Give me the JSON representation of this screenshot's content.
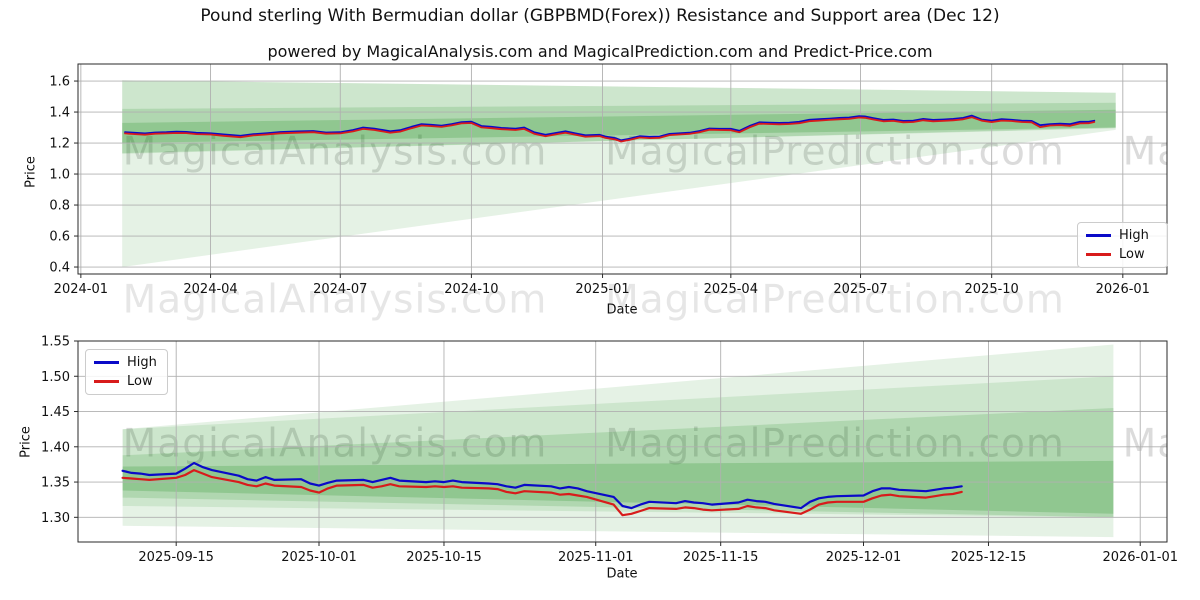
{
  "title": "Pound sterling With Bermudian dollar (GBPBMD(Forex)) Resistance and Support area (Dec 12)",
  "subtitle": "powered by MagicalAnalysis.com and MagicalPrediction.com and Predict-Price.com",
  "watermarks": {
    "left": "MagicalAnalysis.com",
    "right": "MagicalPrediction.com"
  },
  "legend": {
    "high": "High",
    "low": "Low"
  },
  "colors": {
    "high": "#0a0ac8",
    "low": "#d81b1b",
    "band": "#008000",
    "grid": "#b0b0b0",
    "spine": "#2a2a2a"
  },
  "chart_data": [
    {
      "type": "line",
      "name": "full-history-chart",
      "xlabel": "Date",
      "ylabel": "Price",
      "x_domain": [
        "2023-12-30",
        "2026-02-01"
      ],
      "y_domain": [
        0.355,
        1.71
      ],
      "line_width": 1.8,
      "x_ticks": [
        {
          "d": "2024-01-01",
          "label": "2024-01"
        },
        {
          "d": "2024-04-01",
          "label": "2024-04"
        },
        {
          "d": "2024-07-01",
          "label": "2024-07"
        },
        {
          "d": "2024-10-01",
          "label": "2024-10"
        },
        {
          "d": "2025-01-01",
          "label": "2025-01"
        },
        {
          "d": "2025-04-01",
          "label": "2025-04"
        },
        {
          "d": "2025-07-01",
          "label": "2025-07"
        },
        {
          "d": "2025-10-01",
          "label": "2025-10"
        },
        {
          "d": "2026-01-01",
          "label": "2026-01"
        }
      ],
      "y_ticks": [
        {
          "v": 0.4,
          "label": "0.4"
        },
        {
          "v": 0.6,
          "label": "0.6"
        },
        {
          "v": 0.8,
          "label": "0.8"
        },
        {
          "v": 1.0,
          "label": "1.0"
        },
        {
          "v": 1.2,
          "label": "1.2"
        },
        {
          "v": 1.4,
          "label": "1.4"
        },
        {
          "v": 1.6,
          "label": "1.6"
        }
      ],
      "bands": [
        {
          "opacity": 0.1,
          "points": [
            [
              "2024-01-30",
              1.605
            ],
            [
              "2025-12-27",
              1.525
            ],
            [
              "2025-12-27",
              1.285
            ],
            [
              "2024-01-30",
              0.4
            ]
          ]
        },
        {
          "opacity": 0.1,
          "points": [
            [
              "2024-01-30",
              1.605
            ],
            [
              "2025-12-27",
              1.525
            ],
            [
              "2025-12-27",
              1.3
            ],
            [
              "2024-01-30",
              1.13
            ]
          ]
        },
        {
          "opacity": 0.14,
          "points": [
            [
              "2024-01-30",
              1.42
            ],
            [
              "2025-12-27",
              1.46
            ],
            [
              "2025-12-27",
              1.295
            ],
            [
              "2024-01-30",
              1.135
            ]
          ]
        },
        {
          "opacity": 0.18,
          "points": [
            [
              "2024-01-30",
              1.33
            ],
            [
              "2025-12-27",
              1.415
            ],
            [
              "2025-12-27",
              1.3
            ],
            [
              "2024-01-30",
              1.2
            ]
          ]
        }
      ],
      "series": {
        "dates": [
          "2024-02-01",
          "2024-02-08",
          "2024-02-15",
          "2024-02-22",
          "2024-03-01",
          "2024-03-08",
          "2024-03-15",
          "2024-03-22",
          "2024-04-01",
          "2024-04-10",
          "2024-04-22",
          "2024-05-01",
          "2024-05-10",
          "2024-05-20",
          "2024-06-01",
          "2024-06-12",
          "2024-06-21",
          "2024-07-01",
          "2024-07-10",
          "2024-07-17",
          "2024-07-25",
          "2024-08-05",
          "2024-08-12",
          "2024-08-20",
          "2024-08-27",
          "2024-09-03",
          "2024-09-10",
          "2024-09-17",
          "2024-09-24",
          "2024-10-01",
          "2024-10-08",
          "2024-10-15",
          "2024-10-22",
          "2024-11-01",
          "2024-11-07",
          "2024-11-14",
          "2024-11-22",
          "2024-12-01",
          "2024-12-06",
          "2024-12-13",
          "2024-12-20",
          "2024-12-30",
          "2025-01-03",
          "2025-01-10",
          "2025-01-14",
          "2025-01-20",
          "2025-01-27",
          "2025-02-03",
          "2025-02-10",
          "2025-02-17",
          "2025-02-24",
          "2025-03-03",
          "2025-03-10",
          "2025-03-17",
          "2025-03-24",
          "2025-04-01",
          "2025-04-07",
          "2025-04-14",
          "2025-04-21",
          "2025-04-28",
          "2025-05-05",
          "2025-05-12",
          "2025-05-19",
          "2025-05-26",
          "2025-06-02",
          "2025-06-09",
          "2025-06-16",
          "2025-06-23",
          "2025-06-30",
          "2025-07-04",
          "2025-07-10",
          "2025-07-17",
          "2025-07-24",
          "2025-07-31",
          "2025-08-07",
          "2025-08-14",
          "2025-08-21",
          "2025-08-28",
          "2025-09-04",
          "2025-09-11",
          "2025-09-17",
          "2025-09-24",
          "2025-10-01",
          "2025-10-08",
          "2025-10-15",
          "2025-10-22",
          "2025-10-29",
          "2025-11-04",
          "2025-11-11",
          "2025-11-18",
          "2025-11-25",
          "2025-12-02",
          "2025-12-08",
          "2025-12-12"
        ],
        "high": [
          1.27,
          1.266,
          1.262,
          1.268,
          1.27,
          1.273,
          1.272,
          1.266,
          1.263,
          1.256,
          1.247,
          1.257,
          1.263,
          1.271,
          1.275,
          1.278,
          1.268,
          1.27,
          1.284,
          1.3,
          1.293,
          1.276,
          1.283,
          1.305,
          1.322,
          1.318,
          1.312,
          1.322,
          1.335,
          1.338,
          1.31,
          1.305,
          1.298,
          1.293,
          1.3,
          1.27,
          1.253,
          1.268,
          1.276,
          1.262,
          1.25,
          1.253,
          1.242,
          1.232,
          1.218,
          1.228,
          1.244,
          1.24,
          1.242,
          1.259,
          1.263,
          1.267,
          1.278,
          1.294,
          1.292,
          1.292,
          1.279,
          1.31,
          1.334,
          1.332,
          1.33,
          1.332,
          1.337,
          1.35,
          1.354,
          1.358,
          1.362,
          1.365,
          1.374,
          1.372,
          1.361,
          1.349,
          1.352,
          1.343,
          1.345,
          1.356,
          1.349,
          1.352,
          1.356,
          1.362,
          1.377,
          1.352,
          1.344,
          1.354,
          1.35,
          1.344,
          1.343,
          1.315,
          1.322,
          1.325,
          1.322,
          1.337,
          1.337,
          1.344
        ],
        "low": [
          1.262,
          1.258,
          1.254,
          1.26,
          1.262,
          1.265,
          1.264,
          1.258,
          1.255,
          1.247,
          1.238,
          1.249,
          1.255,
          1.263,
          1.267,
          1.27,
          1.26,
          1.262,
          1.275,
          1.291,
          1.284,
          1.267,
          1.274,
          1.296,
          1.313,
          1.309,
          1.304,
          1.314,
          1.327,
          1.329,
          1.301,
          1.296,
          1.289,
          1.284,
          1.291,
          1.26,
          1.244,
          1.259,
          1.267,
          1.253,
          1.241,
          1.245,
          1.233,
          1.223,
          1.21,
          1.22,
          1.236,
          1.232,
          1.234,
          1.251,
          1.255,
          1.259,
          1.27,
          1.286,
          1.284,
          1.283,
          1.27,
          1.301,
          1.325,
          1.323,
          1.321,
          1.323,
          1.328,
          1.341,
          1.345,
          1.349,
          1.353,
          1.356,
          1.365,
          1.363,
          1.352,
          1.34,
          1.343,
          1.334,
          1.336,
          1.347,
          1.34,
          1.343,
          1.347,
          1.353,
          1.367,
          1.344,
          1.335,
          1.345,
          1.342,
          1.336,
          1.334,
          1.303,
          1.313,
          1.316,
          1.311,
          1.327,
          1.328,
          1.336
        ]
      }
    },
    {
      "type": "line",
      "name": "recent-zoom-chart",
      "xlabel": "Date",
      "ylabel": "Price",
      "x_domain": [
        "2025-09-04",
        "2026-01-04"
      ],
      "y_domain": [
        1.265,
        1.55
      ],
      "line_width": 2.2,
      "x_ticks": [
        {
          "d": "2025-09-15",
          "label": "2025-09-15"
        },
        {
          "d": "2025-10-01",
          "label": "2025-10-01"
        },
        {
          "d": "2025-10-15",
          "label": "2025-10-15"
        },
        {
          "d": "2025-11-01",
          "label": "2025-11-01"
        },
        {
          "d": "2025-11-15",
          "label": "2025-11-15"
        },
        {
          "d": "2025-12-01",
          "label": "2025-12-01"
        },
        {
          "d": "2025-12-15",
          "label": "2025-12-15"
        },
        {
          "d": "2026-01-01",
          "label": "2026-01-01"
        }
      ],
      "y_ticks": [
        {
          "v": 1.3,
          "label": "1.30"
        },
        {
          "v": 1.35,
          "label": "1.35"
        },
        {
          "v": 1.4,
          "label": "1.40"
        },
        {
          "v": 1.45,
          "label": "1.45"
        },
        {
          "v": 1.5,
          "label": "1.50"
        },
        {
          "v": 1.55,
          "label": "1.55"
        }
      ],
      "bands": [
        {
          "opacity": 0.1,
          "points": [
            [
              "2025-09-09",
              1.425
            ],
            [
              "2025-12-29",
              1.545
            ],
            [
              "2025-12-29",
              1.272
            ],
            [
              "2025-09-09",
              1.288
            ]
          ]
        },
        {
          "opacity": 0.1,
          "points": [
            [
              "2025-09-09",
              1.425
            ],
            [
              "2025-12-29",
              1.5
            ],
            [
              "2025-12-29",
              1.3
            ],
            [
              "2025-09-09",
              1.316
            ]
          ]
        },
        {
          "opacity": 0.14,
          "points": [
            [
              "2025-09-09",
              1.388
            ],
            [
              "2025-12-29",
              1.455
            ],
            [
              "2025-12-29",
              1.3
            ],
            [
              "2025-09-09",
              1.328
            ]
          ]
        },
        {
          "opacity": 0.18,
          "points": [
            [
              "2025-09-09",
              1.372
            ],
            [
              "2025-12-29",
              1.38
            ],
            [
              "2025-12-29",
              1.305
            ],
            [
              "2025-09-09",
              1.338
            ]
          ]
        }
      ],
      "series": {
        "dates": [
          "2025-09-09",
          "2025-09-10",
          "2025-09-11",
          "2025-09-12",
          "2025-09-15",
          "2025-09-16",
          "2025-09-17",
          "2025-09-18",
          "2025-09-19",
          "2025-09-22",
          "2025-09-23",
          "2025-09-24",
          "2025-09-25",
          "2025-09-26",
          "2025-09-29",
          "2025-09-30",
          "2025-10-01",
          "2025-10-02",
          "2025-10-03",
          "2025-10-06",
          "2025-10-07",
          "2025-10-08",
          "2025-10-09",
          "2025-10-10",
          "2025-10-13",
          "2025-10-14",
          "2025-10-15",
          "2025-10-16",
          "2025-10-17",
          "2025-10-20",
          "2025-10-21",
          "2025-10-22",
          "2025-10-23",
          "2025-10-24",
          "2025-10-27",
          "2025-10-28",
          "2025-10-29",
          "2025-10-30",
          "2025-10-31",
          "2025-11-03",
          "2025-11-04",
          "2025-11-05",
          "2025-11-06",
          "2025-11-07",
          "2025-11-10",
          "2025-11-11",
          "2025-11-12",
          "2025-11-13",
          "2025-11-14",
          "2025-11-17",
          "2025-11-18",
          "2025-11-19",
          "2025-11-20",
          "2025-11-21",
          "2025-11-24",
          "2025-11-25",
          "2025-11-26",
          "2025-11-27",
          "2025-11-28",
          "2025-12-01",
          "2025-12-02",
          "2025-12-03",
          "2025-12-04",
          "2025-12-05",
          "2025-12-08",
          "2025-12-09",
          "2025-12-10",
          "2025-12-11",
          "2025-12-12"
        ],
        "high": [
          1.366,
          1.363,
          1.362,
          1.36,
          1.362,
          1.369,
          1.377,
          1.371,
          1.367,
          1.359,
          1.354,
          1.352,
          1.357,
          1.353,
          1.354,
          1.348,
          1.345,
          1.349,
          1.352,
          1.353,
          1.35,
          1.353,
          1.356,
          1.352,
          1.35,
          1.351,
          1.35,
          1.352,
          1.35,
          1.348,
          1.347,
          1.344,
          1.342,
          1.346,
          1.344,
          1.341,
          1.343,
          1.341,
          1.337,
          1.329,
          1.316,
          1.313,
          1.318,
          1.322,
          1.32,
          1.323,
          1.321,
          1.32,
          1.318,
          1.321,
          1.325,
          1.323,
          1.322,
          1.319,
          1.313,
          1.322,
          1.327,
          1.329,
          1.33,
          1.331,
          1.337,
          1.341,
          1.341,
          1.339,
          1.337,
          1.339,
          1.341,
          1.342,
          1.344
        ],
        "low": [
          1.356,
          1.355,
          1.354,
          1.353,
          1.356,
          1.36,
          1.367,
          1.362,
          1.357,
          1.35,
          1.346,
          1.344,
          1.348,
          1.345,
          1.343,
          1.338,
          1.335,
          1.341,
          1.345,
          1.346,
          1.342,
          1.344,
          1.347,
          1.344,
          1.343,
          1.344,
          1.343,
          1.344,
          1.342,
          1.341,
          1.34,
          1.336,
          1.334,
          1.337,
          1.335,
          1.332,
          1.333,
          1.331,
          1.329,
          1.318,
          1.303,
          1.305,
          1.309,
          1.313,
          1.312,
          1.314,
          1.313,
          1.311,
          1.31,
          1.312,
          1.316,
          1.314,
          1.313,
          1.31,
          1.305,
          1.311,
          1.318,
          1.321,
          1.322,
          1.322,
          1.327,
          1.331,
          1.332,
          1.33,
          1.328,
          1.33,
          1.332,
          1.333,
          1.336
        ]
      }
    }
  ]
}
